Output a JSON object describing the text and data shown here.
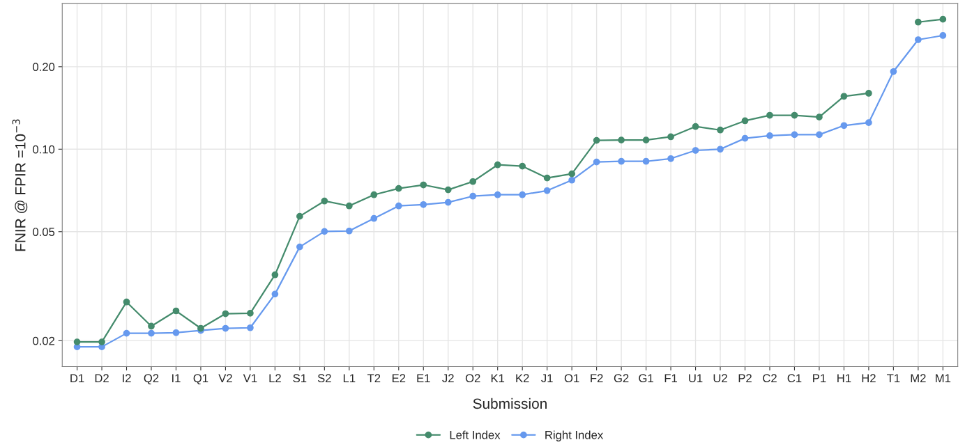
{
  "chart_data": {
    "type": "line",
    "xlabel": "Submission",
    "ylabel": "FNIR @ FPIR =10$^{−3}$",
    "categories": [
      "D1",
      "D2",
      "I2",
      "Q2",
      "I1",
      "Q1",
      "V2",
      "V1",
      "L2",
      "S1",
      "S2",
      "L1",
      "T2",
      "E2",
      "E1",
      "J2",
      "O2",
      "K1",
      "K2",
      "J1",
      "O1",
      "F2",
      "G2",
      "G1",
      "F1",
      "U1",
      "U2",
      "P2",
      "C2",
      "C1",
      "P1",
      "H1",
      "H2",
      "T1",
      "M2",
      "M1"
    ],
    "series": [
      {
        "name": "Left Index",
        "color": "#448b6c",
        "values": [
          0.0198,
          0.0198,
          0.0277,
          0.0226,
          0.0257,
          0.0222,
          0.0251,
          0.0252,
          0.0348,
          0.0569,
          0.0647,
          0.0621,
          0.0682,
          0.0719,
          0.0741,
          0.0711,
          0.0762,
          0.0877,
          0.0867,
          0.0785,
          0.0813,
          0.1077,
          0.108,
          0.108,
          0.111,
          0.121,
          0.1175,
          0.127,
          0.133,
          0.133,
          0.131,
          0.156,
          0.16,
          null,
          0.291,
          0.298
        ]
      },
      {
        "name": "Right Index",
        "color": "#6699ee",
        "values": [
          0.019,
          0.019,
          0.0213,
          0.0213,
          0.0214,
          0.0218,
          0.0222,
          0.0223,
          0.0296,
          0.044,
          0.0501,
          0.0503,
          0.0559,
          0.0621,
          0.0628,
          0.064,
          0.0674,
          0.0682,
          0.0682,
          0.0706,
          0.0771,
          0.0898,
          0.0903,
          0.0903,
          0.0924,
          0.099,
          0.1,
          0.1096,
          0.112,
          0.113,
          0.113,
          0.122,
          0.125,
          0.192,
          0.251,
          0.26
        ]
      }
    ],
    "log": true,
    "ylim": [
      0.0161,
      0.34
    ],
    "yticks": [
      {
        "value": 0.02,
        "label": "0.02"
      },
      {
        "value": 0.05,
        "label": "0.05"
      },
      {
        "value": 0.1,
        "label": "0.10"
      },
      {
        "value": 0.2,
        "label": "0.20"
      }
    ],
    "grid": true,
    "legend": "bottom",
    "marker": "circle",
    "line_style": "solid"
  }
}
